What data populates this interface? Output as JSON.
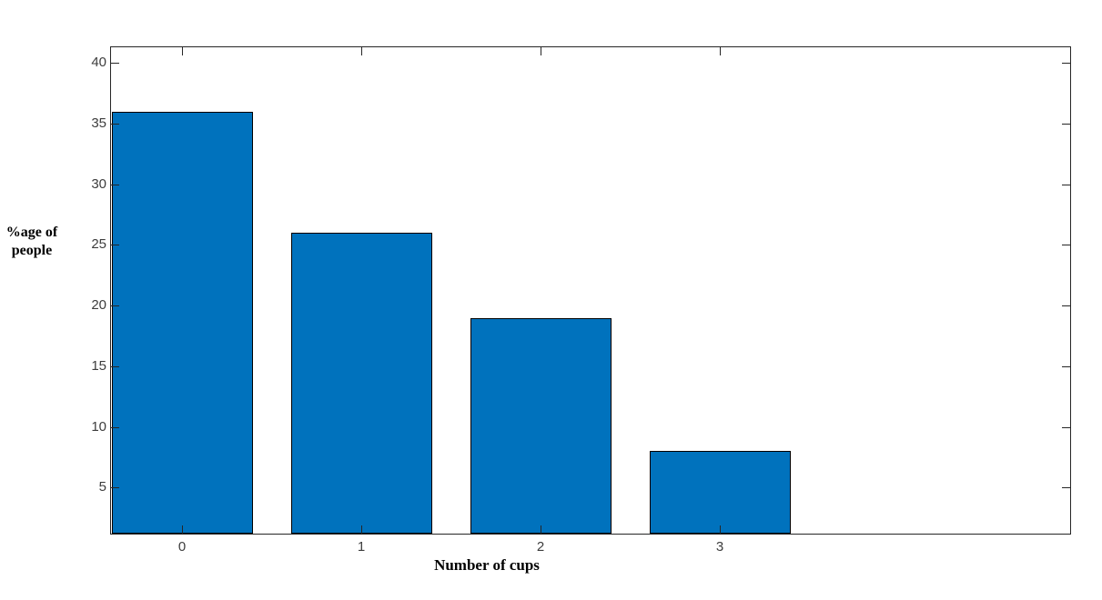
{
  "chart_data": {
    "type": "bar",
    "title": "",
    "categories": [
      "0",
      "1",
      "2",
      "3"
    ],
    "values": [
      36,
      26,
      19,
      8
    ],
    "xlabel": "Number of cups",
    "ylabel": "%age of people",
    "ylabel_lines": [
      "%age of",
      "people"
    ],
    "xticks": [
      "0",
      "1",
      "2",
      "3"
    ],
    "yticks": [
      5,
      10,
      15,
      20,
      25,
      30,
      35,
      40
    ],
    "ylim": [
      1.2,
      41.3
    ],
    "xlim": [
      -0.39,
      4.96
    ],
    "grid": false,
    "legend": null,
    "box": true,
    "tick_direction": "in",
    "bar_color": "#0072BD",
    "bar_edge_color": "#000000",
    "axis_color": "#262626",
    "tick_label_color": "#3d3d3d",
    "background_color": "#ffffff"
  }
}
